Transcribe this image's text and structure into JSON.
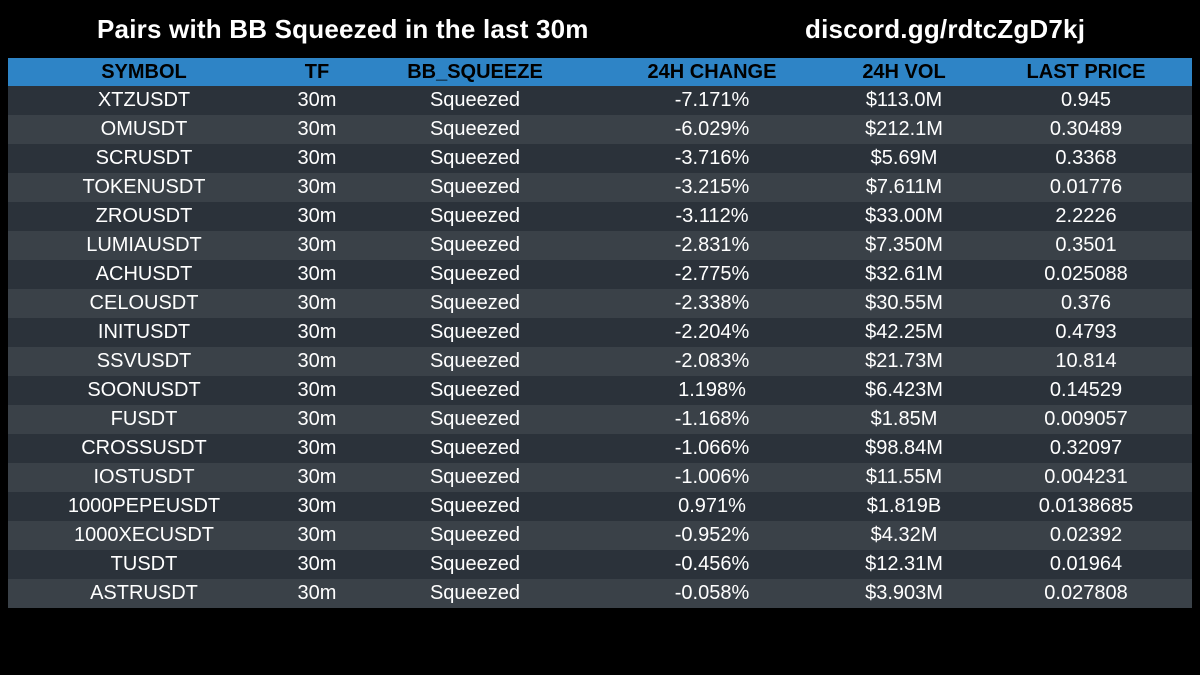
{
  "header": {
    "title": "Pairs with BB Squeezed in the last 30m",
    "link": "discord.gg/rdtcZgD7kj"
  },
  "table": {
    "columns": [
      "SYMBOL",
      "TF",
      "BB_SQUEEZE",
      "24H CHANGE",
      "24H VOL",
      "LAST PRICE"
    ],
    "rows": [
      [
        "XTZUSDT",
        "30m",
        "Squeezed",
        "-7.171%",
        "$113.0M",
        "0.945"
      ],
      [
        "OMUSDT",
        "30m",
        "Squeezed",
        "-6.029%",
        "$212.1M",
        "0.30489"
      ],
      [
        "SCRUSDT",
        "30m",
        "Squeezed",
        "-3.716%",
        "$5.69M",
        "0.3368"
      ],
      [
        "TOKENUSDT",
        "30m",
        "Squeezed",
        "-3.215%",
        "$7.611M",
        "0.01776"
      ],
      [
        "ZROUSDT",
        "30m",
        "Squeezed",
        "-3.112%",
        "$33.00M",
        "2.2226"
      ],
      [
        "LUMIAUSDT",
        "30m",
        "Squeezed",
        "-2.831%",
        "$7.350M",
        "0.3501"
      ],
      [
        "ACHUSDT",
        "30m",
        "Squeezed",
        "-2.775%",
        "$32.61M",
        "0.025088"
      ],
      [
        "CELOUSDT",
        "30m",
        "Squeezed",
        "-2.338%",
        "$30.55M",
        "0.376"
      ],
      [
        "INITUSDT",
        "30m",
        "Squeezed",
        "-2.204%",
        "$42.25M",
        "0.4793"
      ],
      [
        "SSVUSDT",
        "30m",
        "Squeezed",
        "-2.083%",
        "$21.73M",
        "10.814"
      ],
      [
        "SOONUSDT",
        "30m",
        "Squeezed",
        "1.198%",
        "$6.423M",
        "0.14529"
      ],
      [
        "FUSDT",
        "30m",
        "Squeezed",
        "-1.168%",
        "$1.85M",
        "0.009057"
      ],
      [
        "CROSSUSDT",
        "30m",
        "Squeezed",
        "-1.066%",
        "$98.84M",
        "0.32097"
      ],
      [
        "IOSTUSDT",
        "30m",
        "Squeezed",
        "-1.006%",
        "$11.55M",
        "0.004231"
      ],
      [
        "1000PEPEUSDT",
        "30m",
        "Squeezed",
        "0.971%",
        "$1.819B",
        "0.0138685"
      ],
      [
        "1000XECUSDT",
        "30m",
        "Squeezed",
        "-0.952%",
        "$4.32M",
        "0.02392"
      ],
      [
        "TUSDT",
        "30m",
        "Squeezed",
        "-0.456%",
        "$12.31M",
        "0.01964"
      ],
      [
        "ASTRUSDT",
        "30m",
        "Squeezed",
        "-0.058%",
        "$3.903M",
        "0.027808"
      ]
    ]
  },
  "colors": {
    "background": "#000000",
    "header_row": "#2e84c6",
    "row_odd": "#2b323a",
    "row_even": "#3a4148",
    "text": "#ffffff"
  }
}
